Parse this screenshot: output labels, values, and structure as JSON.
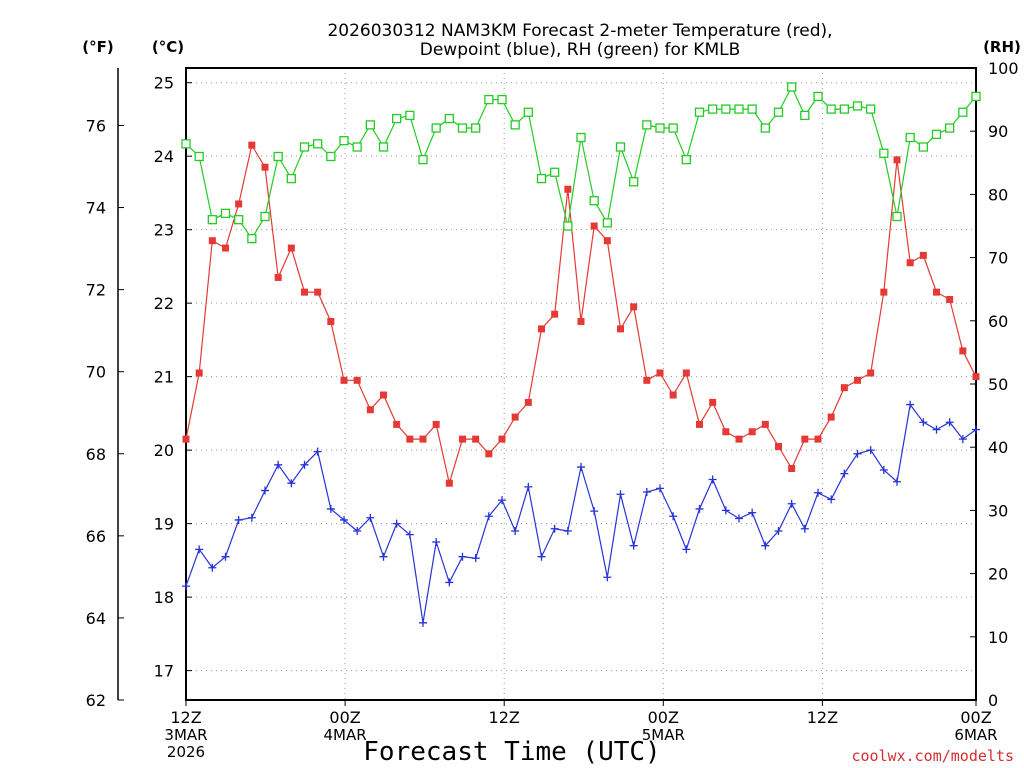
{
  "chart_data": {
    "type": "line",
    "title_line1": "2026030312 NAM3KM Forecast 2-meter Temperature (red),",
    "title_line2": "Dewpoint (blue), RH (green) for KMLB",
    "xlabel": "Forecast Time (UTC)",
    "credit": "coolwx.com/modelts",
    "axis_units": {
      "fahrenheit": "(°F)",
      "celsius": "(°C)",
      "rh": "(RH)"
    },
    "x_range_hours": [
      0,
      36
    ],
    "y_celsius_range": [
      16.6,
      25.2
    ],
    "y_fahrenheit_range": [
      62,
      77.4
    ],
    "rh_range": [
      0,
      100
    ],
    "celsius_ticks": [
      "17",
      "18",
      "19",
      "20",
      "21",
      "22",
      "23",
      "24",
      "25"
    ],
    "fahrenheit_ticks": [
      "62",
      "64",
      "66",
      "68",
      "70",
      "72",
      "74",
      "76"
    ],
    "rh_ticks": [
      "0",
      "10",
      "20",
      "30",
      "40",
      "50",
      "60",
      "70",
      "80",
      "90",
      "100"
    ],
    "x_ticks": [
      {
        "hour": 0,
        "label": "12Z",
        "sub1": "3MAR",
        "sub2": "2026"
      },
      {
        "hour": 7.25,
        "label": "00Z",
        "sub1": "4MAR",
        "sub2": ""
      },
      {
        "hour": 14.5,
        "label": "12Z",
        "sub1": "",
        "sub2": ""
      },
      {
        "hour": 21.75,
        "label": "00Z",
        "sub1": "5MAR",
        "sub2": ""
      },
      {
        "hour": 29,
        "label": "12Z",
        "sub1": "",
        "sub2": ""
      },
      {
        "hour": 36,
        "label": "00Z",
        "sub1": "6MAR",
        "sub2": ""
      }
    ],
    "series": [
      {
        "name": "2-meter Temperature",
        "units": "C",
        "color": "#e53935",
        "marker": "filled-square",
        "values": [
          20.15,
          21.05,
          22.85,
          22.75,
          23.35,
          24.15,
          23.85,
          22.35,
          22.75,
          22.15,
          22.15,
          21.75,
          20.95,
          20.95,
          20.55,
          20.75,
          20.35,
          20.15,
          20.15,
          20.35,
          19.55,
          20.15,
          20.15,
          19.95,
          20.15,
          20.45,
          20.65,
          21.65,
          21.85,
          23.55,
          21.75,
          23.05,
          22.85,
          21.65,
          21.95,
          20.95,
          21.05,
          20.75,
          21.05,
          20.35,
          20.65,
          20.25,
          20.15,
          20.25,
          20.35,
          20.05,
          19.75,
          20.15,
          20.15,
          20.45,
          20.85,
          20.95,
          21.05,
          22.15,
          23.95,
          22.55,
          22.65,
          22.15,
          22.05,
          21.35,
          21.0
        ]
      },
      {
        "name": "Dewpoint",
        "units": "C",
        "color": "#2633d6",
        "marker": "plus",
        "values": [
          18.15,
          18.65,
          18.4,
          18.55,
          19.05,
          19.08,
          19.45,
          19.8,
          19.55,
          19.8,
          19.98,
          19.2,
          19.05,
          18.9,
          19.08,
          18.55,
          19.0,
          18.85,
          17.65,
          18.75,
          18.2,
          18.55,
          18.53,
          19.1,
          19.32,
          18.9,
          19.5,
          18.55,
          18.93,
          18.9,
          19.77,
          19.17,
          18.27,
          19.4,
          18.7,
          19.43,
          19.48,
          19.1,
          18.65,
          19.2,
          19.6,
          19.18,
          19.07,
          19.15,
          18.7,
          18.9,
          19.27,
          18.93,
          19.42,
          19.33,
          19.68,
          19.95,
          20.0,
          19.73,
          19.57,
          20.62,
          20.38,
          20.28,
          20.38,
          20.15,
          20.28
        ]
      },
      {
        "name": "RH",
        "units": "%",
        "color": "#22cc22",
        "marker": "open-square",
        "values": [
          88,
          86,
          76,
          77,
          76,
          73,
          76.5,
          86,
          82.5,
          87.5,
          88,
          86,
          88.5,
          87.5,
          91,
          87.5,
          92,
          92.5,
          85.5,
          90.5,
          92,
          90.5,
          90.5,
          95,
          95,
          91,
          93,
          82.5,
          83.5,
          75,
          89,
          79,
          75.5,
          87.5,
          82,
          91,
          90.5,
          90.5,
          85.5,
          93,
          93.5,
          93.5,
          93.5,
          93.5,
          90.5,
          93,
          97,
          92.5,
          95.5,
          93.5,
          93.5,
          94,
          93.5,
          86.5,
          76.5,
          89,
          87.5,
          89.5,
          90.5,
          93,
          95.5
        ]
      }
    ]
  }
}
